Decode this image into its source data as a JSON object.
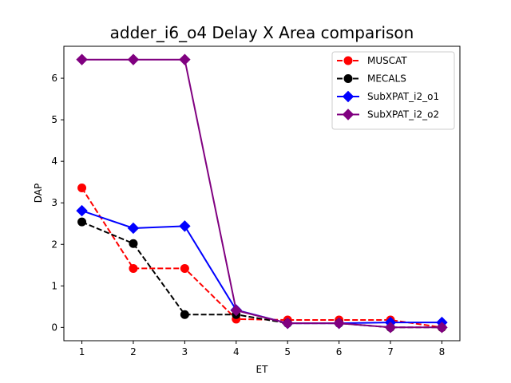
{
  "chart_data": {
    "type": "line",
    "title": "adder_i6_o4 Delay X Area comparison",
    "xlabel": "ET",
    "ylabel": "DAP",
    "x": [
      1,
      2,
      3,
      4,
      5,
      6,
      7,
      8
    ],
    "xlim": [
      0.65,
      8.35
    ],
    "ylim": [
      -0.32,
      6.77
    ],
    "xticks": [
      1,
      2,
      3,
      4,
      5,
      6,
      7,
      8
    ],
    "yticks": [
      0,
      1,
      2,
      3,
      4,
      5,
      6
    ],
    "grid": false,
    "legend_position": "top-right",
    "series": [
      {
        "name": "MUSCAT",
        "color": "#ff0000",
        "dash": "dashed",
        "marker": "circle",
        "values": [
          3.36,
          1.42,
          1.42,
          0.2,
          0.18,
          0.18,
          0.18,
          0.0
        ]
      },
      {
        "name": "MECALS",
        "color": "#000000",
        "dash": "dashed",
        "marker": "circle",
        "values": [
          2.54,
          2.02,
          0.31,
          0.31,
          0.1,
          0.1,
          0.0,
          0.0
        ]
      },
      {
        "name": "SubXPAT_i2_o1",
        "color": "#0000ff",
        "dash": "solid",
        "marker": "diamond",
        "values": [
          2.81,
          2.39,
          2.44,
          0.42,
          0.1,
          0.1,
          0.12,
          0.12
        ]
      },
      {
        "name": "SubXPAT_i2_o2",
        "color": "#800080",
        "dash": "solid",
        "marker": "diamond",
        "values": [
          6.45,
          6.45,
          6.45,
          0.41,
          0.1,
          0.1,
          0.0,
          0.0
        ]
      }
    ]
  }
}
